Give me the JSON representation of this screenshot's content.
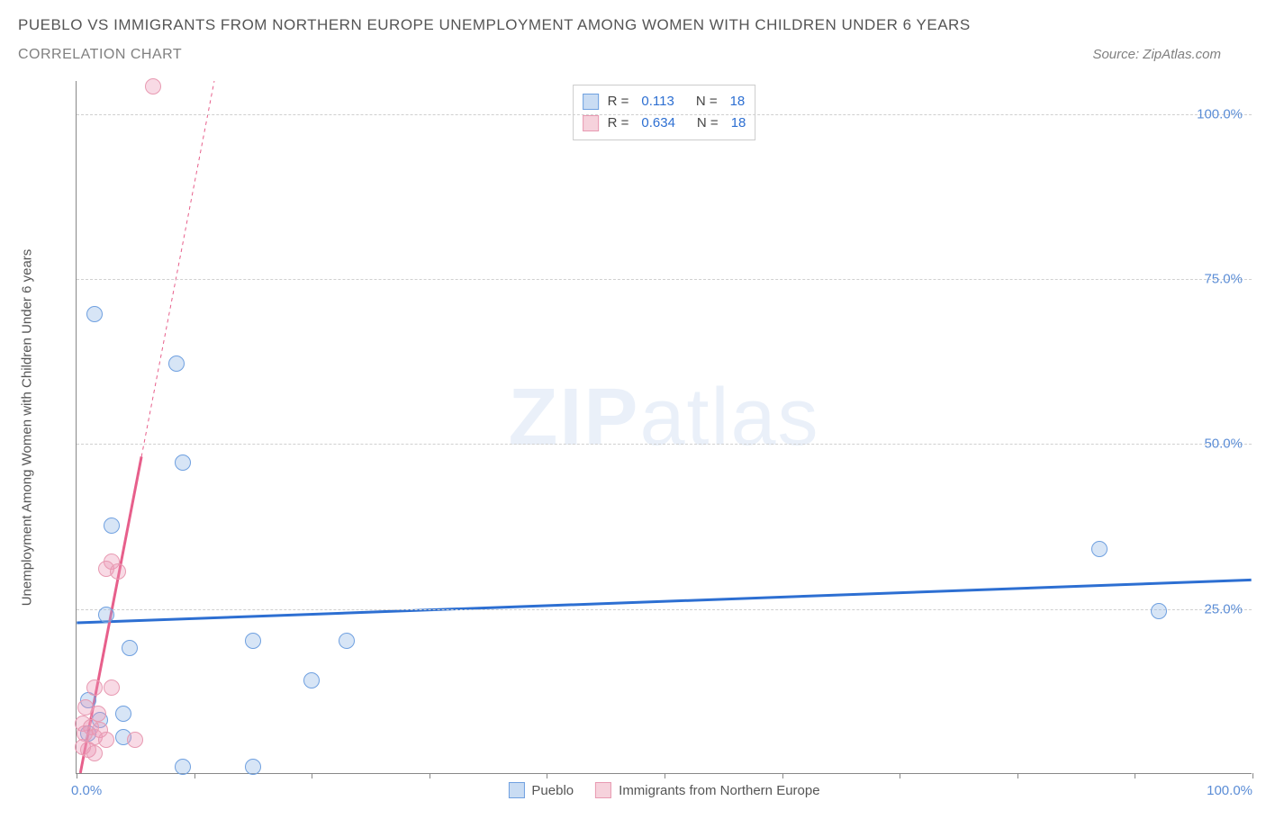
{
  "header": {
    "title": "PUEBLO VS IMMIGRANTS FROM NORTHERN EUROPE UNEMPLOYMENT AMONG WOMEN WITH CHILDREN UNDER 6 YEARS",
    "subtitle": "CORRELATION CHART",
    "source": "Source: ZipAtlas.com"
  },
  "chart": {
    "type": "scatter",
    "y_axis_label": "Unemployment Among Women with Children Under 6 years",
    "background_color": "#ffffff",
    "grid_color": "#d0d0d0",
    "axis_color": "#888888",
    "tick_label_color": "#5b8dd6",
    "xlim": [
      0,
      100
    ],
    "ylim": [
      0,
      105
    ],
    "y_gridlines": [
      25,
      50,
      75,
      100
    ],
    "y_tick_labels": [
      "25.0%",
      "50.0%",
      "75.0%",
      "100.0%"
    ],
    "x_ticks": [
      0,
      10,
      20,
      30,
      40,
      50,
      60,
      70,
      80,
      90,
      100
    ],
    "x_tick_labels": {
      "0": "0.0%",
      "100": "100.0%"
    },
    "watermark": {
      "bold": "ZIP",
      "light": "atlas"
    },
    "legend_top": {
      "rows": [
        {
          "swatch_fill": "#c9dcf3",
          "swatch_stroke": "#6fa0e0",
          "r_label": "R =",
          "r_value": "0.113",
          "n_label": "N =",
          "n_value": "18"
        },
        {
          "swatch_fill": "#f6d2dc",
          "swatch_stroke": "#e89ab2",
          "r_label": "R =",
          "r_value": "0.634",
          "n_label": "N =",
          "n_value": "18"
        }
      ]
    },
    "legend_bottom": [
      {
        "swatch_fill": "#c9dcf3",
        "swatch_stroke": "#6fa0e0",
        "label": "Pueblo"
      },
      {
        "swatch_fill": "#f6d2dc",
        "swatch_stroke": "#e89ab2",
        "label": "Immigrants from Northern Europe"
      }
    ],
    "series": [
      {
        "name": "pueblo",
        "marker_fill": "rgba(140,180,230,0.35)",
        "marker_stroke": "#6fa0e0",
        "marker_radius": 9,
        "trend": {
          "x1": 0,
          "y1": 22.8,
          "x2": 100,
          "y2": 29.3,
          "color": "#2d6fd2",
          "width": 3,
          "dash": "none"
        },
        "points": [
          {
            "x": 1.5,
            "y": 69.5
          },
          {
            "x": 8.5,
            "y": 62.0
          },
          {
            "x": 9.0,
            "y": 47.0
          },
          {
            "x": 3.0,
            "y": 37.5
          },
          {
            "x": 87.0,
            "y": 34.0
          },
          {
            "x": 92.0,
            "y": 24.5
          },
          {
            "x": 2.5,
            "y": 24.0
          },
          {
            "x": 15.0,
            "y": 20.0
          },
          {
            "x": 23.0,
            "y": 20.0
          },
          {
            "x": 4.5,
            "y": 19.0
          },
          {
            "x": 20.0,
            "y": 14.0
          },
          {
            "x": 1.0,
            "y": 11.0
          },
          {
            "x": 2.0,
            "y": 8.0
          },
          {
            "x": 4.0,
            "y": 9.0
          },
          {
            "x": 1.0,
            "y": 6.0
          },
          {
            "x": 4.0,
            "y": 5.5
          },
          {
            "x": 9.0,
            "y": 1.0
          },
          {
            "x": 15.0,
            "y": 1.0
          }
        ]
      },
      {
        "name": "immigrants-northern-europe",
        "marker_fill": "rgba(235,150,180,0.35)",
        "marker_stroke": "#e89ab2",
        "marker_radius": 9,
        "trend": {
          "x1": 0.3,
          "y1": 0,
          "x2": 5.5,
          "y2": 48,
          "color": "#e75f8b",
          "width": 3,
          "dash": "none"
        },
        "trend_ext": {
          "x1": 5.5,
          "y1": 48,
          "x2": 11.7,
          "y2": 105,
          "color": "#e75f8b",
          "width": 1,
          "dash": "4,4"
        },
        "points": [
          {
            "x": 6.5,
            "y": 104.0
          },
          {
            "x": 3.0,
            "y": 32.0
          },
          {
            "x": 2.5,
            "y": 31.0
          },
          {
            "x": 3.5,
            "y": 30.5
          },
          {
            "x": 1.5,
            "y": 13.0
          },
          {
            "x": 3.0,
            "y": 13.0
          },
          {
            "x": 0.8,
            "y": 10.0
          },
          {
            "x": 1.8,
            "y": 9.0
          },
          {
            "x": 0.5,
            "y": 7.5
          },
          {
            "x": 1.2,
            "y": 7.0
          },
          {
            "x": 2.0,
            "y": 6.5
          },
          {
            "x": 0.7,
            "y": 6.0
          },
          {
            "x": 1.5,
            "y": 5.5
          },
          {
            "x": 2.5,
            "y": 5.0
          },
          {
            "x": 5.0,
            "y": 5.0
          },
          {
            "x": 0.5,
            "y": 4.0
          },
          {
            "x": 1.0,
            "y": 3.5
          },
          {
            "x": 1.5,
            "y": 3.0
          }
        ]
      }
    ]
  }
}
